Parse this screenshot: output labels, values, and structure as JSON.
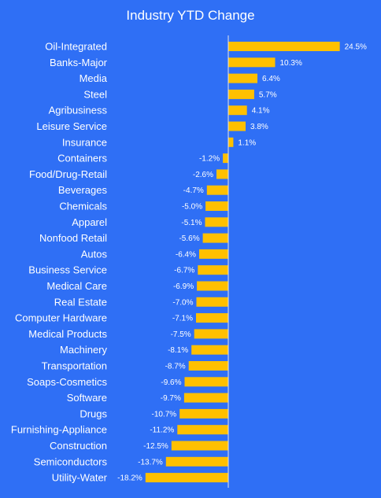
{
  "colors": {
    "background": "#2F6FF5",
    "bar": "#FFC000",
    "text": "#FFFFFF",
    "axis": "#E6E6E6"
  },
  "chart_data": {
    "type": "bar",
    "orientation": "horizontal",
    "title": "Industry YTD Change",
    "xlim": [
      -19,
      26
    ],
    "grid": false,
    "legend": "none",
    "categories": [
      "Oil-Integrated",
      "Banks-Major",
      "Media",
      "Steel",
      "Agribusiness",
      "Leisure Service",
      "Insurance",
      "Containers",
      "Food/Drug-Retail",
      "Beverages",
      "Chemicals",
      "Apparel",
      "Nonfood Retail",
      "Autos",
      "Business Service",
      "Medical Care",
      "Real Estate",
      "Computer Hardware",
      "Medical Products",
      "Machinery",
      "Transportation",
      "Soaps-Cosmetics",
      "Software",
      "Drugs",
      "Furnishing-Appliance",
      "Construction",
      "Semiconductors",
      "Utility-Water"
    ],
    "values": [
      24.5,
      10.3,
      6.4,
      5.7,
      4.1,
      3.8,
      1.1,
      -1.2,
      -2.6,
      -4.7,
      -5.0,
      -5.1,
      -5.6,
      -6.4,
      -6.7,
      -6.9,
      -7.0,
      -7.1,
      -7.5,
      -8.1,
      -8.7,
      -9.6,
      -9.7,
      -10.7,
      -11.2,
      -12.5,
      -13.7,
      -18.2
    ],
    "value_labels": [
      "24.5%",
      "10.3%",
      "6.4%",
      "5.7%",
      "4.1%",
      "3.8%",
      "1.1%",
      "-1.2%",
      "-2.6%",
      "-4.7%",
      "-5.0%",
      "-5.1%",
      "-5.6%",
      "-6.4%",
      "-6.7%",
      "-6.9%",
      "-7.0%",
      "-7.1%",
      "-7.5%",
      "-8.1%",
      "-8.7%",
      "-9.6%",
      "-9.7%",
      "-10.7%",
      "-11.2%",
      "-12.5%",
      "-13.7%",
      "-18.2%"
    ]
  }
}
